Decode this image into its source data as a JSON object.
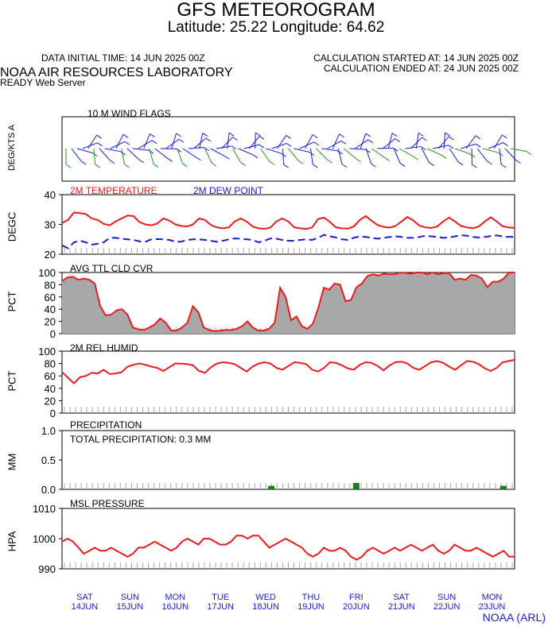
{
  "header": {
    "title": "GFS METEOROGRAM",
    "location": "Latitude: 25.22 Longitude:  64.62",
    "init_time": "DATA INITIAL TIME: 14 JUN 2025 00Z",
    "calc_started": "CALCULATION STARTED AT: 14 JUN 2025 00Z",
    "calc_ended": "CALCULATION ENDED AT: 24 JUN 2025 00Z",
    "org": "NOAA AIR RESOURCES LABORATORY",
    "server": "READY Web Server",
    "credit": "NOAA (ARL)"
  },
  "panels": {
    "wind": {
      "ylabel": "DEG/KTS A",
      "title": "10 M  WIND FLAGS"
    },
    "temp": {
      "ylabel": "DEGC",
      "series1": "2M TEMPERATURE",
      "series2": "2M  DEW POINT",
      "ticks": [
        "40",
        "30",
        "20"
      ]
    },
    "cloud": {
      "ylabel": "PCT",
      "title": "AVG TTL CLD CVR",
      "ticks": [
        "100",
        "80",
        "60",
        "40",
        "20",
        "0"
      ]
    },
    "humid": {
      "ylabel": "PCT",
      "title": "2M REL HUMID",
      "ticks": [
        "100",
        "80",
        "60",
        "40",
        "20",
        "0"
      ]
    },
    "precip": {
      "ylabel": "MM",
      "title": "PRECIPITATION",
      "total": "TOTAL PRECIPITATION:   0.3 MM",
      "ticks": [
        "1.0",
        "0.5",
        "0.0"
      ]
    },
    "pres": {
      "ylabel": "HPA",
      "title": "MSL PRESSURE",
      "ticks": [
        "1010",
        "1000",
        "990"
      ]
    }
  },
  "days": [
    {
      "dow": "SAT",
      "date": "14JUN"
    },
    {
      "dow": "SUN",
      "date": "15JUN"
    },
    {
      "dow": "MON",
      "date": "16JUN"
    },
    {
      "dow": "TUE",
      "date": "17JUN"
    },
    {
      "dow": "WED",
      "date": "18JUN"
    },
    {
      "dow": "THU",
      "date": "19JUN"
    },
    {
      "dow": "FRI",
      "date": "20JUN"
    },
    {
      "dow": "SAT",
      "date": "21JUN"
    },
    {
      "dow": "SUN",
      "date": "22JUN"
    },
    {
      "dow": "MON",
      "date": "23JUN"
    }
  ],
  "colors": {
    "temperature": "#e81c1c",
    "dew_point": "#1a1adc",
    "cloud_fill": "#a8a8a8",
    "precip_bar": "#1c7a1c",
    "axis_text_blue": "#1a1adc"
  },
  "chart_data": [
    {
      "type": "line",
      "name": "2M TEMPERATURE / DEW POINT",
      "x_hours_from_init": "0 to 240 every 3 hours",
      "ylim": [
        20,
        40
      ],
      "series": [
        {
          "name": "2M TEMPERATURE",
          "values": [
            30.5,
            31.5,
            34,
            33.8,
            33.5,
            32,
            31.5,
            30.2,
            29.7,
            31,
            32,
            33,
            32.8,
            30.8,
            30,
            29.7,
            30.3,
            32,
            31.3,
            30,
            29.5,
            29.3,
            30,
            32,
            31.5,
            29.8,
            29,
            28.7,
            29,
            31,
            32,
            31,
            29.3,
            28.7,
            28.5,
            29,
            31,
            32,
            31,
            29,
            28.7,
            28.5,
            29,
            31.8,
            32.3,
            30.8,
            29,
            28.7,
            28.6,
            29.3,
            31.5,
            32.8,
            31.2,
            29.8,
            29.2,
            28.9,
            29.5,
            31,
            32.5,
            31.3,
            29.6,
            29,
            28.8,
            29.3,
            31,
            32.3,
            31,
            29.5,
            29,
            28.7,
            29.3,
            31,
            32.4,
            31,
            29.4,
            29,
            28.8
          ]
        },
        {
          "name": "2M  DEW POINT",
          "values": [
            23,
            22,
            24,
            24.5,
            24,
            23.2,
            23.5,
            24,
            25.5,
            25.5,
            25.2,
            25,
            24.8,
            24.3,
            24.2,
            25,
            25.1,
            25,
            24.8,
            24.2,
            24.2,
            24.8,
            25,
            25,
            24.8,
            24.5,
            24.2,
            24.5,
            25,
            25.3,
            25.2,
            25,
            24.8,
            24,
            24.5,
            25.3,
            25.2,
            24.8,
            24.5,
            24.5,
            24.8,
            25,
            24.8,
            25.5,
            26.5,
            26,
            25.6,
            25,
            24.8,
            25.5,
            26,
            25.8,
            25.5,
            25.2,
            25.5,
            25.8,
            26,
            25.8,
            25.5,
            25.5,
            25.8,
            26.2,
            26,
            25.8,
            25.5,
            25.6,
            26,
            26.4,
            26.2,
            25.8,
            25.6,
            25.8,
            26.1,
            26.3,
            26,
            25.8,
            25.9
          ]
        }
      ]
    },
    {
      "type": "area",
      "name": "AVG TTL CLD CVR",
      "ylim": [
        0,
        100
      ],
      "values": [
        86,
        92,
        93,
        88,
        90,
        88,
        82,
        45,
        30,
        31,
        38,
        40,
        31,
        10,
        7,
        6,
        10,
        15,
        25,
        18,
        5,
        5,
        10,
        18,
        45,
        35,
        10,
        6,
        4,
        5,
        6,
        6,
        8,
        12,
        20,
        10,
        5,
        5,
        8,
        18,
        75,
        60,
        22,
        28,
        12,
        8,
        16,
        42,
        75,
        72,
        82,
        80,
        53,
        55,
        76,
        82,
        94,
        97,
        95,
        98,
        97,
        97,
        100,
        99,
        98,
        100,
        100,
        97,
        100,
        97,
        99,
        99,
        88,
        90,
        88,
        96,
        95,
        90,
        76,
        85,
        85,
        90,
        100,
        100
      ]
    },
    {
      "type": "line",
      "name": "2M REL HUMID",
      "ylim": [
        0,
        100
      ],
      "values": [
        66,
        57,
        48,
        58,
        60,
        65,
        64,
        70,
        63,
        64,
        66,
        75,
        78,
        80,
        78,
        75,
        73,
        68,
        74,
        80,
        80,
        79,
        77,
        68,
        65,
        74,
        80,
        82,
        81,
        79,
        73,
        67,
        75,
        80,
        82,
        80,
        73,
        70,
        76,
        82,
        81,
        79,
        70,
        67,
        73,
        82,
        81,
        77,
        72,
        70,
        78,
        82,
        81,
        76,
        69,
        77,
        82,
        83,
        80,
        73,
        70,
        76,
        82,
        84,
        81,
        75,
        70,
        77,
        84,
        83,
        79,
        72,
        68,
        73,
        82,
        84,
        86
      ]
    },
    {
      "type": "bar",
      "name": "PRECIPITATION",
      "ylim": [
        0,
        1.0
      ],
      "values_mm": [
        {
          "hour": 111,
          "value": 0.06
        },
        {
          "hour": 156,
          "value": 0.11
        },
        {
          "hour": 234,
          "value": 0.06
        }
      ]
    },
    {
      "type": "line",
      "name": "MSL PRESSURE",
      "ylim": [
        990,
        1010
      ],
      "values": [
        999,
        1000,
        999,
        997,
        995,
        996,
        997,
        996,
        996,
        997,
        996,
        995,
        994,
        995,
        997,
        997,
        998,
        999,
        998,
        997,
        996,
        997,
        999,
        1000,
        999,
        998,
        1000,
        1000,
        999,
        998,
        998,
        999,
        1001,
        1001,
        1000,
        1001,
        1001,
        999,
        997,
        998,
        999,
        1000,
        999,
        998,
        997,
        995,
        994,
        995,
        997,
        996,
        996,
        997,
        996,
        994,
        993,
        994,
        996,
        997,
        996,
        995,
        996,
        997,
        996,
        997,
        998,
        997,
        996,
        997,
        998,
        996,
        995,
        996,
        998,
        997,
        996,
        996,
        997,
        996,
        995,
        994,
        995,
        996,
        994,
        994
      ]
    }
  ]
}
